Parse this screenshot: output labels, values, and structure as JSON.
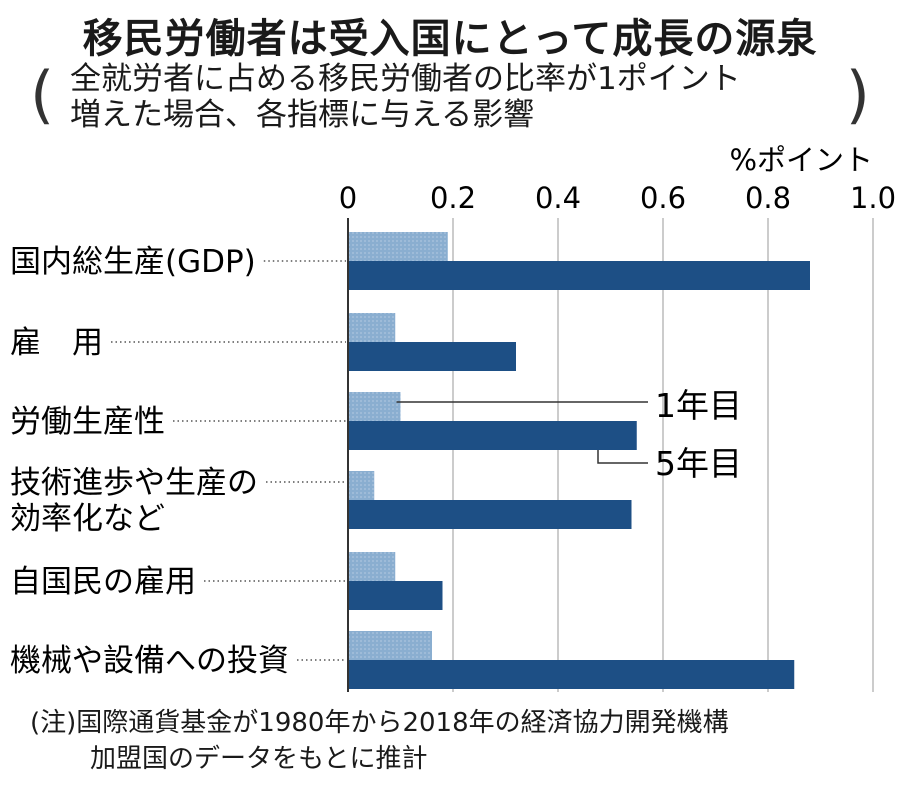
{
  "title": "移民労働者は受入国にとって成長の源泉",
  "subtitle": {
    "line1": "全就労者に占める移民労働者の比率が1ポイント",
    "line2": "増えた場合、各指標に与える影響",
    "open_paren": "(",
    "close_paren": ")"
  },
  "note": {
    "line1": "(注)国際通貨基金が1980年から2018年の経済協力開発機構",
    "line2": "加盟国のデータをもとに推計"
  },
  "colors": {
    "series1": "#8aaed0",
    "series2": "#1d4f85",
    "grid": "#9a9a9a",
    "axis": "#333333"
  },
  "chart_data": {
    "type": "bar",
    "orientation": "horizontal",
    "unit_label": "%ポイント",
    "xlim": [
      0,
      1.0
    ],
    "ticks": [
      "0",
      "0.2",
      "0.4",
      "0.6",
      "0.8",
      "1.0"
    ],
    "tick_values": [
      0,
      0.2,
      0.4,
      0.6,
      0.8,
      1.0
    ],
    "grid": true,
    "categories": [
      [
        "国内総生産(GDP)"
      ],
      [
        "雇　用"
      ],
      [
        "労働生産性"
      ],
      [
        "技術進歩や生産の",
        "効率化など"
      ],
      [
        "自国民の雇用"
      ],
      [
        "機械や設備への投資"
      ]
    ],
    "series": [
      {
        "name": "1年目",
        "values": [
          0.19,
          0.09,
          0.1,
          0.05,
          0.09,
          0.16
        ]
      },
      {
        "name": "5年目",
        "values": [
          0.88,
          0.32,
          0.55,
          0.54,
          0.18,
          0.85
        ]
      }
    ]
  }
}
